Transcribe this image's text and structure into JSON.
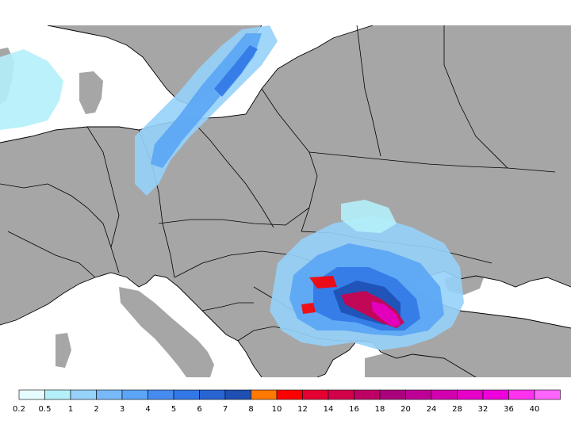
{
  "map": {
    "land_color": "#a6a6a6",
    "sea_color": "#ffffff",
    "border_color": "#000000"
  },
  "legend": {
    "bins": [
      {
        "label": "0.2",
        "color": "#e6fcff"
      },
      {
        "label": "0.5",
        "color": "#b4f0fa"
      },
      {
        "label": "1",
        "color": "#96d2fa"
      },
      {
        "label": "2",
        "color": "#78b9fa"
      },
      {
        "label": "3",
        "color": "#5aa5f5"
      },
      {
        "label": "4",
        "color": "#468cf0"
      },
      {
        "label": "5",
        "color": "#3278e6"
      },
      {
        "label": "6",
        "color": "#2864d2"
      },
      {
        "label": "7",
        "color": "#1e50b4"
      },
      {
        "label": "8",
        "color": "#ff7800"
      },
      {
        "label": "10",
        "color": "#ff0000"
      },
      {
        "label": "12",
        "color": "#e60032"
      },
      {
        "label": "14",
        "color": "#d2004b"
      },
      {
        "label": "16",
        "color": "#be0064"
      },
      {
        "label": "18",
        "color": "#aa007d"
      },
      {
        "label": "20",
        "color": "#be0096"
      },
      {
        "label": "24",
        "color": "#d200af"
      },
      {
        "label": "28",
        "color": "#e600c8"
      },
      {
        "label": "32",
        "color": "#f000dc"
      },
      {
        "label": "36",
        "color": "#ff32f0"
      },
      {
        "label": "40",
        "color": "#ff64ff"
      }
    ]
  }
}
